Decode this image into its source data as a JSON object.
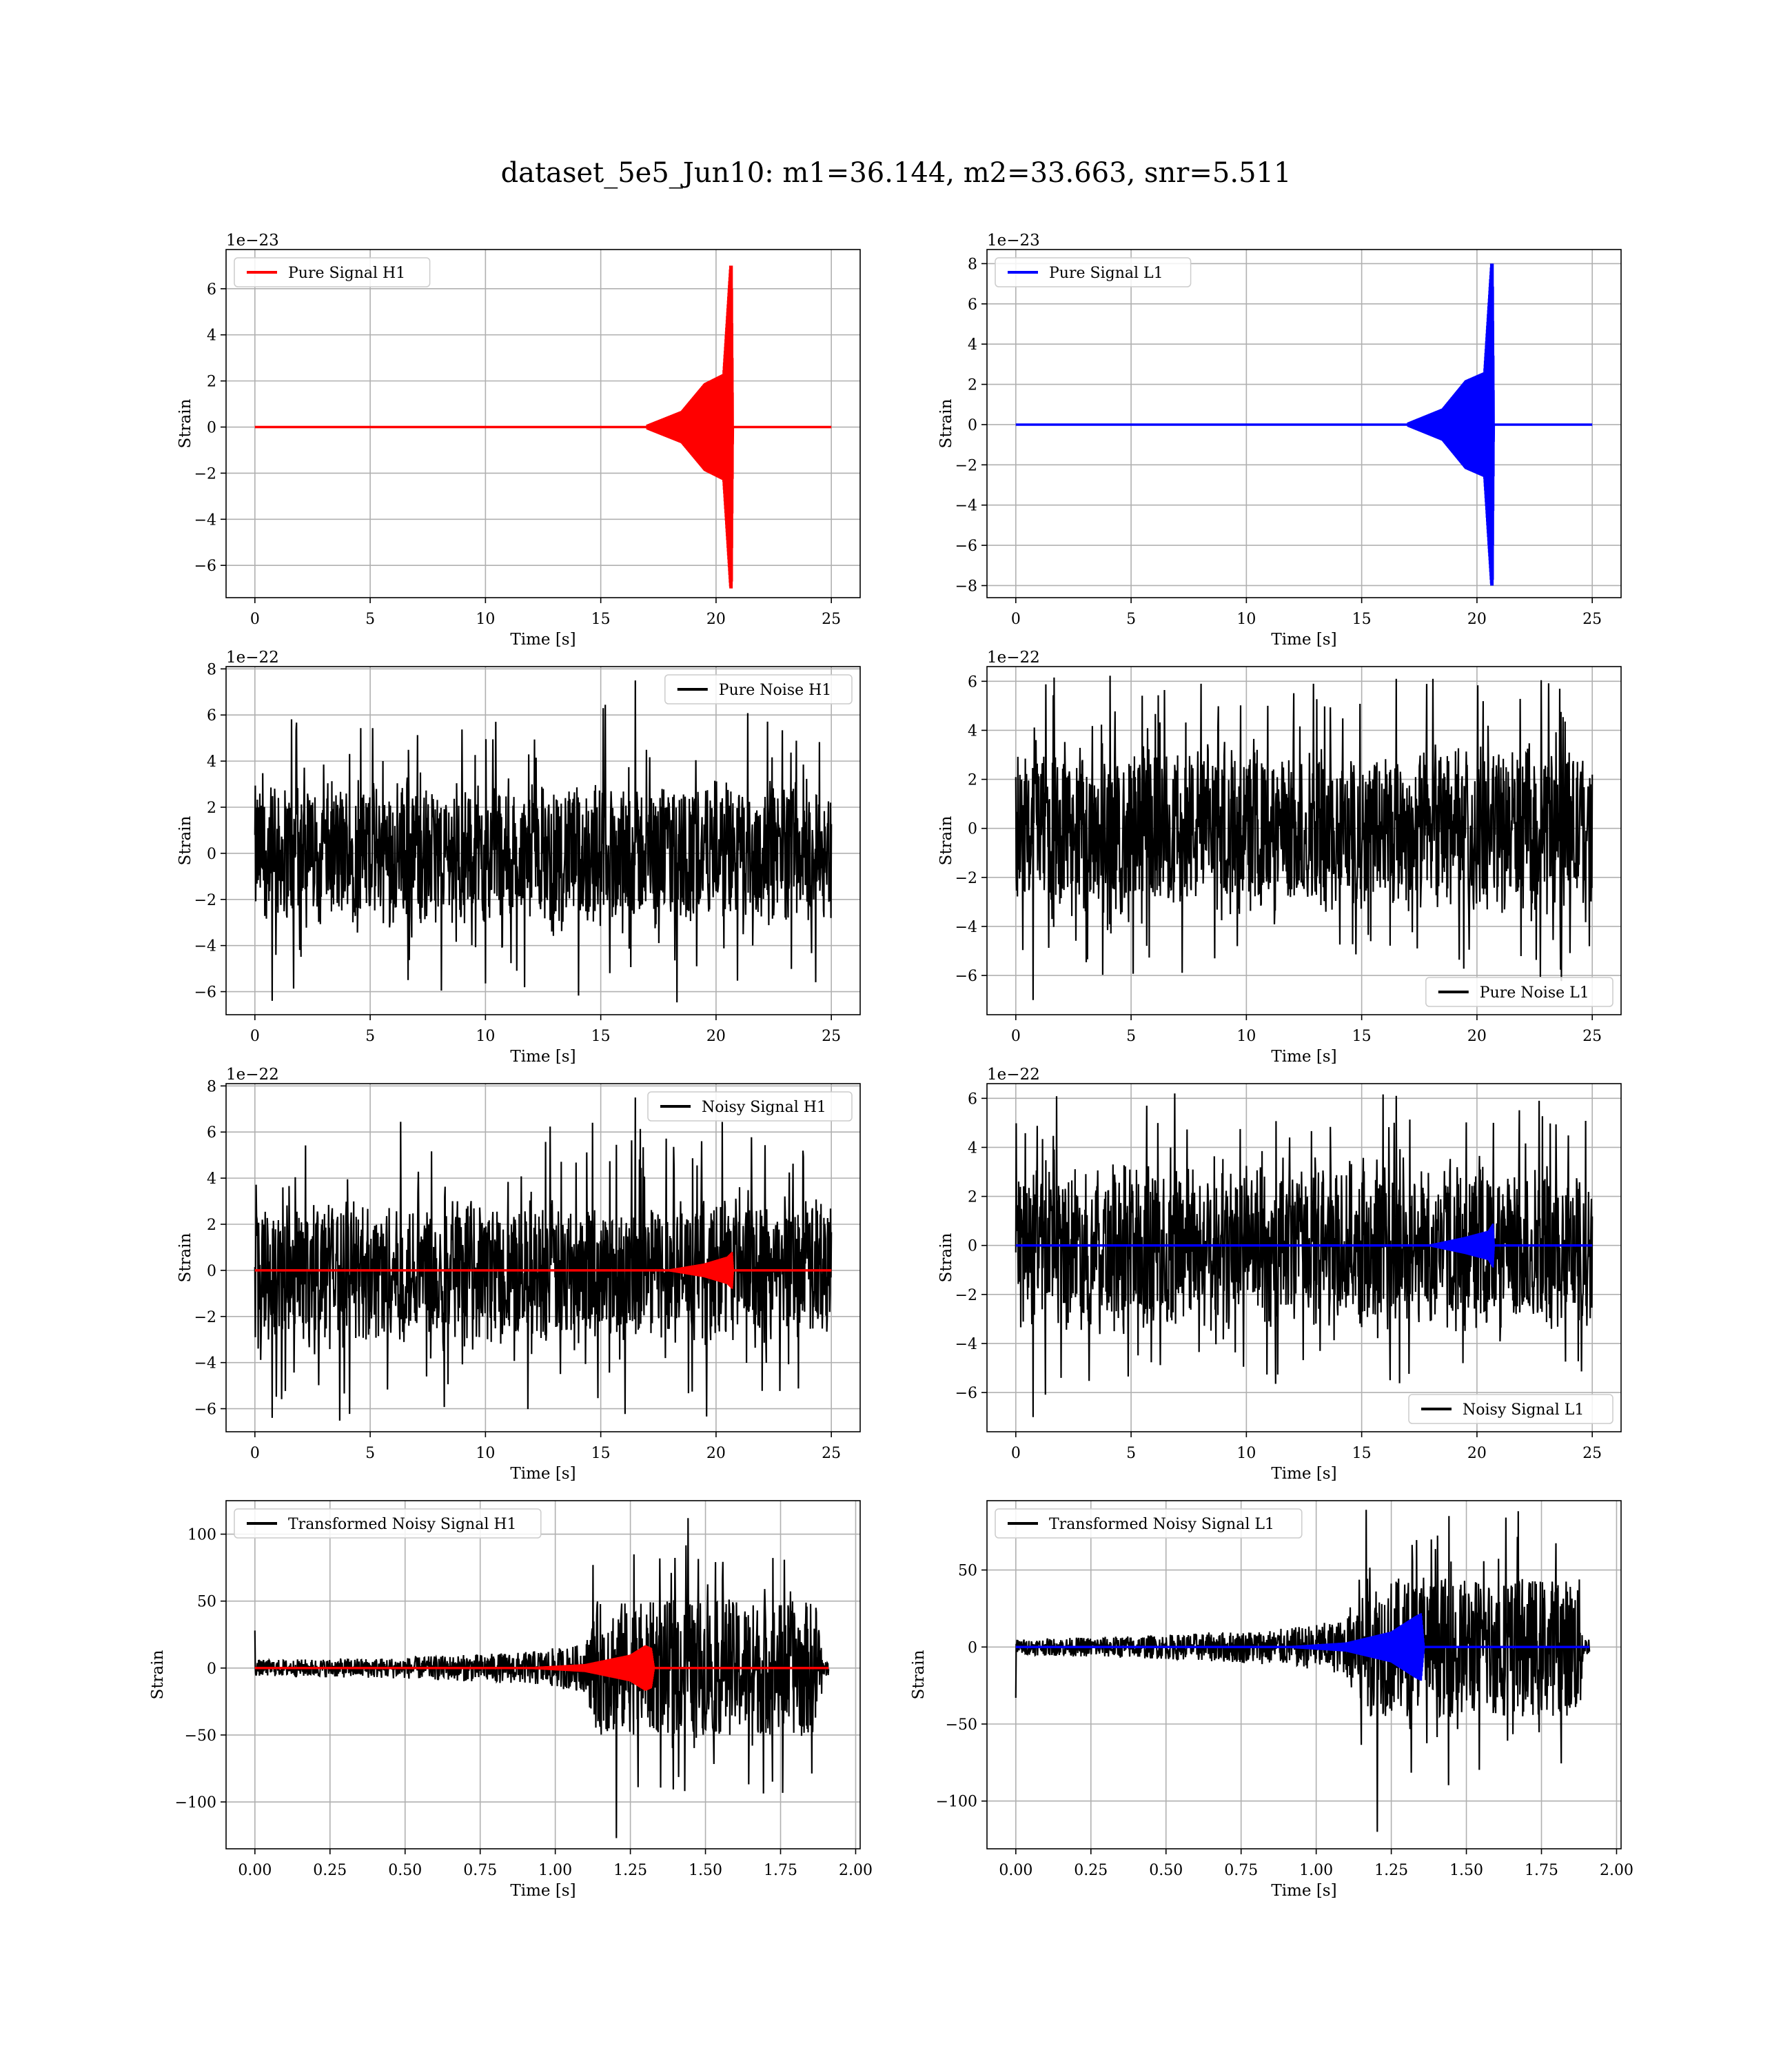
{
  "figure": {
    "title": "dataset_5e5_Jun10: m1=36.144, m2=33.663, snr=5.511"
  },
  "chart_data": [
    {
      "id": "pure-signal-h1",
      "type": "line",
      "panel": "row1-left",
      "xlabel": "Time [s]",
      "ylabel": "Strain",
      "offset_text": "1e−23",
      "xlim": [
        -1.25,
        26.25
      ],
      "ylim": [
        -7.4,
        7.7
      ],
      "xticks": [
        0,
        5,
        10,
        15,
        20,
        25
      ],
      "xticklabels": [
        "0",
        "5",
        "10",
        "15",
        "20",
        "25"
      ],
      "yticks": [
        -6,
        -4,
        -2,
        0,
        2,
        4,
        6
      ],
      "yticklabels": [
        "−6",
        "−4",
        "−2",
        "0",
        "2",
        "4",
        "6"
      ],
      "grid": true,
      "legend_position": "upper-left",
      "series": [
        {
          "name": "Pure Signal H1",
          "color": "#ff0000",
          "kind": "chirp",
          "x_range": [
            0,
            25
          ],
          "merger_time": 20.7,
          "envelope_points": [
            [
              0,
              0.02
            ],
            [
              17,
              0.1
            ],
            [
              18.5,
              0.7
            ],
            [
              19.5,
              1.9
            ],
            [
              20.3,
              2.3
            ],
            [
              20.6,
              7.0
            ],
            [
              20.7,
              7.0
            ],
            [
              20.75,
              0.0
            ]
          ],
          "negative_peak": -6.7
        }
      ]
    },
    {
      "id": "pure-signal-l1",
      "type": "line",
      "panel": "row1-right",
      "xlabel": "Time [s]",
      "ylabel": "Strain",
      "offset_text": "1e−23",
      "xlim": [
        -1.25,
        26.25
      ],
      "ylim": [
        -8.6,
        8.7
      ],
      "xticks": [
        0,
        5,
        10,
        15,
        20,
        25
      ],
      "xticklabels": [
        "0",
        "5",
        "10",
        "15",
        "20",
        "25"
      ],
      "yticks": [
        -8,
        -6,
        -4,
        -2,
        0,
        2,
        4,
        6,
        8
      ],
      "yticklabels": [
        "−8",
        "−6",
        "−4",
        "−2",
        "0",
        "2",
        "4",
        "6",
        "8"
      ],
      "grid": true,
      "legend_position": "upper-left",
      "series": [
        {
          "name": "Pure Signal L1",
          "color": "#0000ff",
          "kind": "chirp",
          "x_range": [
            0,
            25
          ],
          "merger_time": 20.7,
          "envelope_points": [
            [
              0,
              0.02
            ],
            [
              17,
              0.1
            ],
            [
              18.5,
              0.8
            ],
            [
              19.5,
              2.2
            ],
            [
              20.3,
              2.6
            ],
            [
              20.6,
              8.0
            ],
            [
              20.7,
              8.0
            ],
            [
              20.75,
              0.0
            ]
          ],
          "negative_peak": -7.8
        }
      ]
    },
    {
      "id": "pure-noise-h1",
      "type": "line",
      "panel": "row2-left",
      "xlabel": "Time [s]",
      "ylabel": "Strain",
      "offset_text": "1e−22",
      "xlim": [
        -1.25,
        26.25
      ],
      "ylim": [
        -7.0,
        8.1
      ],
      "xticks": [
        0,
        5,
        10,
        15,
        20,
        25
      ],
      "xticklabels": [
        "0",
        "5",
        "10",
        "15",
        "20",
        "25"
      ],
      "yticks": [
        -6,
        -4,
        -2,
        0,
        2,
        4,
        6,
        8
      ],
      "yticklabels": [
        "−6",
        "−4",
        "−2",
        "0",
        "2",
        "4",
        "6",
        "8"
      ],
      "grid": true,
      "legend_position": "upper-right",
      "series": [
        {
          "name": "Pure Noise H1",
          "color": "#000000",
          "kind": "noise",
          "x_range": [
            0,
            25
          ],
          "band": 3.0,
          "max": 7.5,
          "min": -6.4
        }
      ]
    },
    {
      "id": "pure-noise-l1",
      "type": "line",
      "panel": "row2-right",
      "xlabel": "Time [s]",
      "ylabel": "Strain",
      "offset_text": "1e−22",
      "xlim": [
        -1.25,
        26.25
      ],
      "ylim": [
        -7.6,
        6.6
      ],
      "xticks": [
        0,
        5,
        10,
        15,
        20,
        25
      ],
      "xticklabels": [
        "0",
        "5",
        "10",
        "15",
        "20",
        "25"
      ],
      "yticks": [
        -6,
        -4,
        -2,
        0,
        2,
        4,
        6
      ],
      "yticklabels": [
        "−6",
        "−4",
        "−2",
        "0",
        "2",
        "4",
        "6"
      ],
      "grid": true,
      "legend_position": "lower-right",
      "series": [
        {
          "name": "Pure Noise L1",
          "color": "#000000",
          "kind": "noise",
          "x_range": [
            0,
            25
          ],
          "band": 3.3,
          "max": 6.1,
          "min": -7.0
        }
      ]
    },
    {
      "id": "noisy-signal-h1",
      "type": "line",
      "panel": "row3-left",
      "xlabel": "Time [s]",
      "ylabel": "Strain",
      "offset_text": "1e−22",
      "xlim": [
        -1.25,
        26.25
      ],
      "ylim": [
        -7.0,
        8.1
      ],
      "xticks": [
        0,
        5,
        10,
        15,
        20,
        25
      ],
      "xticklabels": [
        "0",
        "5",
        "10",
        "15",
        "20",
        "25"
      ],
      "yticks": [
        -6,
        -4,
        -2,
        0,
        2,
        4,
        6,
        8
      ],
      "yticklabels": [
        "−6",
        "−4",
        "−2",
        "0",
        "2",
        "4",
        "6",
        "8"
      ],
      "grid": true,
      "legend_position": "upper-right",
      "series": [
        {
          "name": "Noisy Signal H1",
          "color": "#000000",
          "kind": "noise",
          "x_range": [
            0,
            25
          ],
          "band": 3.0,
          "max": 7.5,
          "min": -6.4
        },
        {
          "name": "",
          "color": "#ff0000",
          "kind": "chirp",
          "x_range": [
            0,
            25
          ],
          "merger_time": 20.7,
          "envelope_points": [
            [
              0,
              0.0
            ],
            [
              18,
              0.05
            ],
            [
              19.5,
              0.3
            ],
            [
              20.5,
              0.6
            ],
            [
              20.7,
              0.8
            ],
            [
              20.75,
              0.0
            ]
          ],
          "negative_peak": -0.7
        }
      ]
    },
    {
      "id": "noisy-signal-l1",
      "type": "line",
      "panel": "row3-right",
      "xlabel": "Time [s]",
      "ylabel": "Strain",
      "offset_text": "1e−22",
      "xlim": [
        -1.25,
        26.25
      ],
      "ylim": [
        -7.6,
        6.6
      ],
      "xticks": [
        0,
        5,
        10,
        15,
        20,
        25
      ],
      "xticklabels": [
        "0",
        "5",
        "10",
        "15",
        "20",
        "25"
      ],
      "yticks": [
        -6,
        -4,
        -2,
        0,
        2,
        4,
        6
      ],
      "yticklabels": [
        "−6",
        "−4",
        "−2",
        "0",
        "2",
        "4",
        "6"
      ],
      "grid": true,
      "legend_position": "lower-right",
      "series": [
        {
          "name": "Noisy Signal L1",
          "color": "#000000",
          "kind": "noise",
          "x_range": [
            0,
            25
          ],
          "band": 3.3,
          "max": 6.1,
          "min": -7.0
        },
        {
          "name": "",
          "color": "#0000ff",
          "kind": "chirp",
          "x_range": [
            0,
            25
          ],
          "merger_time": 20.7,
          "envelope_points": [
            [
              0,
              0.0
            ],
            [
              18,
              0.05
            ],
            [
              19.5,
              0.35
            ],
            [
              20.5,
              0.6
            ],
            [
              20.7,
              0.9
            ],
            [
              20.75,
              0.0
            ]
          ],
          "negative_peak": -0.8
        }
      ]
    },
    {
      "id": "transformed-noisy-signal-h1",
      "type": "line",
      "panel": "row4-left",
      "xlabel": "Time [s]",
      "ylabel": "Strain",
      "offset_text": "",
      "xlim": [
        -0.096,
        2.015
      ],
      "ylim": [
        -135,
        125
      ],
      "xticks": [
        0,
        0.25,
        0.5,
        0.75,
        1.0,
        1.25,
        1.5,
        1.75,
        2.0
      ],
      "xticklabels": [
        "0.00",
        "0.25",
        "0.50",
        "0.75",
        "1.00",
        "1.25",
        "1.50",
        "1.75",
        "2.00"
      ],
      "yticks": [
        -100,
        -50,
        0,
        50,
        100
      ],
      "yticklabels": [
        "−100",
        "−50",
        "0",
        "50",
        "100"
      ],
      "grid": true,
      "legend_position": "upper-left",
      "series": [
        {
          "name": "Transformed Noisy Signal H1",
          "color": "#000000",
          "kind": "tnoise",
          "x_range": [
            0,
            1.91
          ],
          "envelope_points": [
            [
              0,
              6
            ],
            [
              0.5,
              8
            ],
            [
              0.9,
              12
            ],
            [
              1.1,
              18
            ],
            [
              1.14,
              50
            ],
            [
              1.6,
              50
            ],
            [
              1.88,
              50
            ],
            [
              1.89,
              6
            ],
            [
              1.91,
              6
            ]
          ],
          "max": 112,
          "min": -127,
          "start_spike": 28
        },
        {
          "name": "",
          "color": "#ff0000",
          "kind": "chirp",
          "x_range": [
            0,
            1.91
          ],
          "merger_time": 1.32,
          "envelope_points": [
            [
              0,
              0.0
            ],
            [
              0.9,
              0.5
            ],
            [
              1.1,
              3
            ],
            [
              1.25,
              10
            ],
            [
              1.3,
              17
            ],
            [
              1.32,
              15
            ],
            [
              1.33,
              0
            ]
          ],
          "negative_peak": -17
        }
      ]
    },
    {
      "id": "transformed-noisy-signal-l1",
      "type": "line",
      "panel": "row4-right",
      "xlabel": "Time [s]",
      "ylabel": "Strain",
      "offset_text": "",
      "xlim": [
        -0.096,
        2.015
      ],
      "ylim": [
        -131,
        95
      ],
      "xticks": [
        0,
        0.25,
        0.5,
        0.75,
        1.0,
        1.25,
        1.5,
        1.75,
        2.0
      ],
      "xticklabels": [
        "0.00",
        "0.25",
        "0.50",
        "0.75",
        "1.00",
        "1.25",
        "1.50",
        "1.75",
        "2.00"
      ],
      "yticks": [
        -100,
        -50,
        0,
        50
      ],
      "yticklabels": [
        "−100",
        "−50",
        "0",
        "50"
      ],
      "grid": true,
      "legend_position": "upper-left",
      "series": [
        {
          "name": "Transformed Noisy Signal L1",
          "color": "#000000",
          "kind": "tnoise",
          "x_range": [
            0,
            1.91
          ],
          "envelope_points": [
            [
              0,
              5
            ],
            [
              0.5,
              8
            ],
            [
              0.9,
              12
            ],
            [
              1.1,
              18
            ],
            [
              1.14,
              45
            ],
            [
              1.6,
              45
            ],
            [
              1.88,
              45
            ],
            [
              1.89,
              5
            ],
            [
              1.91,
              5
            ]
          ],
          "max": 85,
          "min": -120,
          "start_spike": -33
        },
        {
          "name": "",
          "color": "#0000ff",
          "kind": "chirp",
          "x_range": [
            0,
            1.91
          ],
          "merger_time": 1.35,
          "envelope_points": [
            [
              0,
              0.0
            ],
            [
              0.9,
              0.5
            ],
            [
              1.1,
              3
            ],
            [
              1.25,
              10
            ],
            [
              1.33,
              20
            ],
            [
              1.35,
              22
            ],
            [
              1.36,
              0
            ]
          ],
          "negative_peak": -22
        }
      ]
    }
  ]
}
